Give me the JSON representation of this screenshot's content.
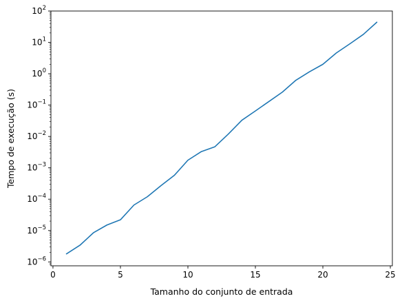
{
  "chart_data": {
    "type": "line",
    "title": "",
    "xlabel": "Tamanho do conjunto de entrada",
    "ylabel": "Tempo de execução (s)",
    "xlim": [
      -0.15,
      25.15
    ],
    "ylim": [
      7.5e-07,
      100
    ],
    "yscale": "log",
    "grid": false,
    "x_ticks": [
      0,
      5,
      10,
      15,
      20,
      25
    ],
    "y_ticks": [
      {
        "value": 1e-06,
        "base": "10",
        "exp": "−6"
      },
      {
        "value": 1e-05,
        "base": "10",
        "exp": "−5"
      },
      {
        "value": 0.0001,
        "base": "10",
        "exp": "−4"
      },
      {
        "value": 0.001,
        "base": "10",
        "exp": "−3"
      },
      {
        "value": 0.01,
        "base": "10",
        "exp": "−2"
      },
      {
        "value": 0.1,
        "base": "10",
        "exp": "−1"
      },
      {
        "value": 1,
        "base": "10",
        "exp": "0"
      },
      {
        "value": 10,
        "base": "10",
        "exp": "1"
      },
      {
        "value": 100,
        "base": "10",
        "exp": "2"
      }
    ],
    "series": [
      {
        "color": "#1f77b4",
        "x": [
          1,
          2,
          3,
          4,
          5,
          6,
          7,
          8,
          9,
          10,
          11,
          12,
          13,
          14,
          15,
          16,
          17,
          18,
          19,
          20,
          21,
          22,
          23,
          24
        ],
        "y": [
          1.8e-06,
          3.4e-06,
          8.5e-06,
          1.5e-05,
          2.2e-05,
          6.5e-05,
          0.00012,
          0.00027,
          0.00058,
          0.00175,
          0.0033,
          0.0047,
          0.012,
          0.033,
          0.065,
          0.13,
          0.26,
          0.62,
          1.15,
          2.0,
          4.6,
          9.0,
          18.0,
          44.0
        ]
      }
    ]
  }
}
